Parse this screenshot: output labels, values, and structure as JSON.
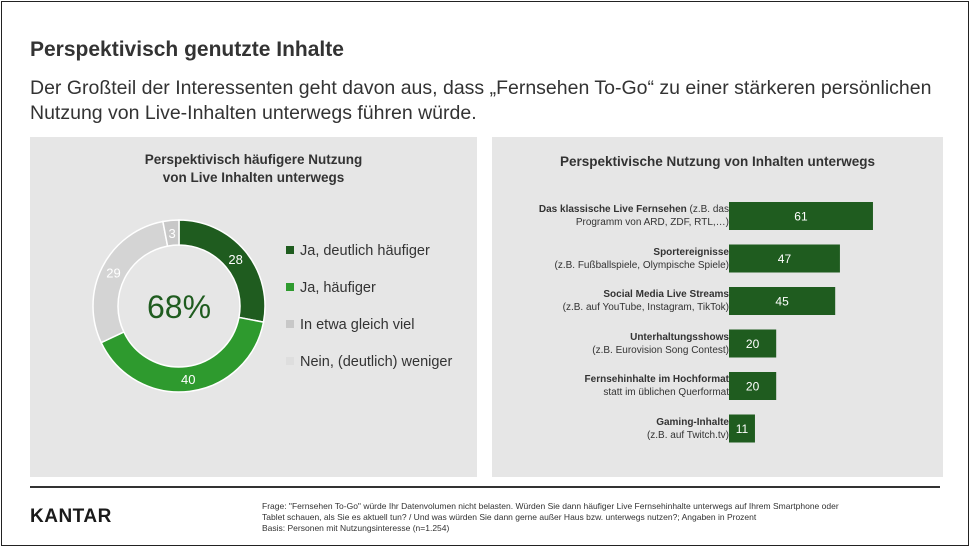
{
  "header": {
    "title": "Perspektivisch genutzte Inhalte",
    "subtitle": "Der Großteil der Interessenten geht davon aus, dass „Fernsehen To-Go“ zu einer stärkeren persönlichen Nutzung von Live-Inhalten unterwegs führen würde."
  },
  "left_panel": {
    "title_line1": "Perspektivisch häufigere Nutzung",
    "title_line2": "von Live Inhalten unterwegs",
    "center_value": "68%"
  },
  "right_panel": {
    "title": "Perspektivische Nutzung von Inhalten unterwegs"
  },
  "chart_data": [
    {
      "type": "pie",
      "variant": "donut",
      "title": "Perspektivisch häufigere Nutzung von Live Inhalten unterwegs",
      "center_label": "68%",
      "legend_position": "right",
      "slices": [
        {
          "label": "Ja, deutlich häufiger",
          "value": 28,
          "color": "#1f5c1f"
        },
        {
          "label": "Ja, häufiger",
          "value": 40,
          "color": "#2e9a2e"
        },
        {
          "label": "Nein, (deutlich) weniger",
          "value": 29,
          "color": "#d4d4d4"
        },
        {
          "label": "In etwa gleich viel",
          "value": 3,
          "color": "#c8c8c8"
        }
      ],
      "legend": [
        {
          "label": "Ja, deutlich häufiger",
          "color": "#1f5c1f"
        },
        {
          "label": "Ja, häufiger",
          "color": "#2e9a2e"
        },
        {
          "label": "In etwa gleich viel",
          "color": "#c8c8c8"
        },
        {
          "label": "Nein, (deutlich) weniger",
          "color": "#dedede"
        }
      ]
    },
    {
      "type": "bar",
      "orientation": "horizontal",
      "title": "Perspektivische Nutzung von Inhalten unterwegs",
      "bar_color": "#1f5c1f",
      "xlim": [
        0,
        100
      ],
      "categories": [
        {
          "bold": "Das klassische Live Fernsehen",
          "rest_line1": " (z.B. das",
          "line2": "Programm von ARD, ZDF, RTL,…)"
        },
        {
          "bold": "Sportereignisse",
          "rest_line1": "",
          "line2": "(z.B. Fußballspiele, Olympische Spiele)"
        },
        {
          "bold": "Social Media Live Streams",
          "rest_line1": "",
          "line2": "(z.B. auf YouTube, Instagram, TikTok)"
        },
        {
          "bold": "Unterhaltungsshows",
          "rest_line1": "",
          "line2": "(z.B. Eurovision Song Contest)"
        },
        {
          "bold": "Fernsehinhalte im Hochformat",
          "rest_line1": "",
          "line2": "statt im üblichen Querformat"
        },
        {
          "bold": "Gaming-Inhalte",
          "rest_line1": "",
          "line2": "(z.B. auf Twitch.tv)"
        }
      ],
      "values": [
        61,
        47,
        45,
        20,
        20,
        11
      ]
    }
  ],
  "footer": {
    "logo": "KANTAR",
    "note_line1": "Frage: \"Fernsehen To-Go\" würde Ihr Datenvolumen nicht belasten. Würden Sie dann häufiger Live Fernsehinhalte unterwegs auf Ihrem Smartphone oder",
    "note_line2": "Tablet schauen, als Sie es aktuell tun? / Und was würden Sie dann gerne außer Haus bzw. unterwegs nutzen?; Angaben in Prozent",
    "note_line3": "Basis: Personen mit Nutzungsinteresse (n=1.254)"
  }
}
